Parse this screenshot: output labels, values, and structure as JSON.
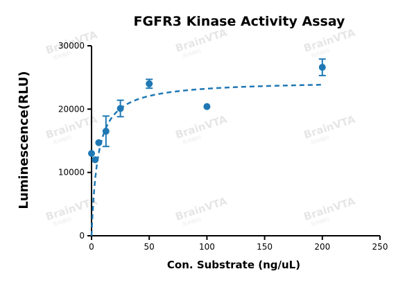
{
  "chart_data": {
    "type": "scatter",
    "title": "FGFR3 Kinase Activity Assay",
    "xlabel": "Con. Substrate  (ng/uL)",
    "ylabel": "Luminescence(RLU)",
    "xlim": [
      0,
      250
    ],
    "ylim": [
      0,
      30000
    ],
    "x_ticks": [
      0,
      50,
      100,
      150,
      200,
      250
    ],
    "y_ticks": [
      0,
      10000,
      20000,
      30000
    ],
    "grid": false,
    "series": [
      {
        "points": [
          {
            "x": 0,
            "y": 13000,
            "err": 0
          },
          {
            "x": 3.125,
            "y": 12000,
            "err": 0
          },
          {
            "x": 6.25,
            "y": 14700,
            "err": 0
          },
          {
            "x": 12.5,
            "y": 16500,
            "err": 2400
          },
          {
            "x": 25,
            "y": 20100,
            "err": 1300
          },
          {
            "x": 50,
            "y": 24000,
            "err": 700
          },
          {
            "x": 100,
            "y": 20400,
            "err": 0
          },
          {
            "x": 200,
            "y": 26600,
            "err": 1300
          }
        ],
        "color": "#1f78b4"
      }
    ],
    "fit_curve": {
      "model": "Michaelis-Menten",
      "vmax": 24500,
      "km": 5.5,
      "x_start": 0,
      "x_end": 200,
      "style": "dashed",
      "color": "#1f78b4"
    }
  },
  "watermark": {
    "text": "BrainVTA",
    "subtext": "苏州脑科"
  }
}
